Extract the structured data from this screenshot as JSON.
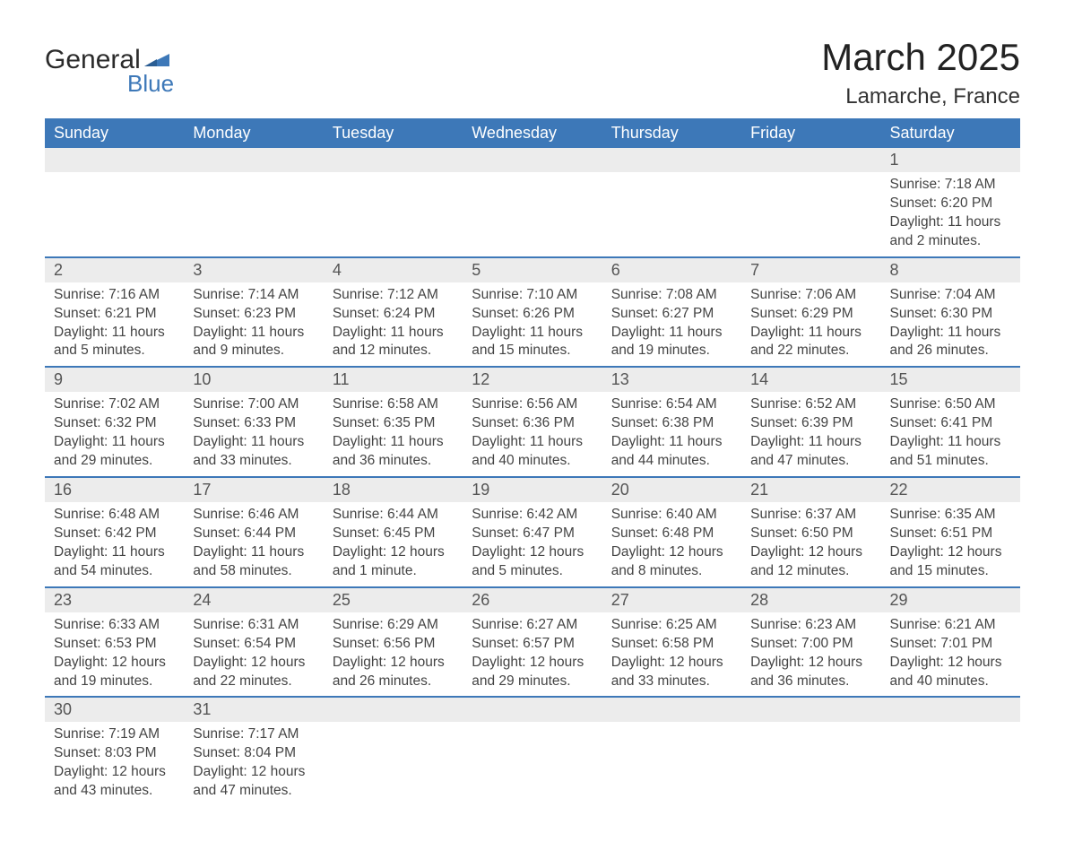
{
  "logo": {
    "text_main": "General",
    "text_sub": "Blue",
    "flag_color": "#3d78b8"
  },
  "title": "March 2025",
  "location": "Lamarche, France",
  "colors": {
    "header_bg": "#3d78b8",
    "header_text": "#ffffff",
    "daynum_bg": "#ececec",
    "row_border": "#3d78b8",
    "body_text": "#444444",
    "title_text": "#222222"
  },
  "typography": {
    "title_fontsize": 42,
    "location_fontsize": 24,
    "header_fontsize": 18,
    "daynum_fontsize": 18,
    "detail_fontsize": 15.5,
    "font_family": "Arial"
  },
  "weekdays": [
    "Sunday",
    "Monday",
    "Tuesday",
    "Wednesday",
    "Thursday",
    "Friday",
    "Saturday"
  ],
  "weeks": [
    [
      null,
      null,
      null,
      null,
      null,
      null,
      {
        "n": "1",
        "sr": "Sunrise: 7:18 AM",
        "ss": "Sunset: 6:20 PM",
        "d1": "Daylight: 11 hours",
        "d2": "and 2 minutes."
      }
    ],
    [
      {
        "n": "2",
        "sr": "Sunrise: 7:16 AM",
        "ss": "Sunset: 6:21 PM",
        "d1": "Daylight: 11 hours",
        "d2": "and 5 minutes."
      },
      {
        "n": "3",
        "sr": "Sunrise: 7:14 AM",
        "ss": "Sunset: 6:23 PM",
        "d1": "Daylight: 11 hours",
        "d2": "and 9 minutes."
      },
      {
        "n": "4",
        "sr": "Sunrise: 7:12 AM",
        "ss": "Sunset: 6:24 PM",
        "d1": "Daylight: 11 hours",
        "d2": "and 12 minutes."
      },
      {
        "n": "5",
        "sr": "Sunrise: 7:10 AM",
        "ss": "Sunset: 6:26 PM",
        "d1": "Daylight: 11 hours",
        "d2": "and 15 minutes."
      },
      {
        "n": "6",
        "sr": "Sunrise: 7:08 AM",
        "ss": "Sunset: 6:27 PM",
        "d1": "Daylight: 11 hours",
        "d2": "and 19 minutes."
      },
      {
        "n": "7",
        "sr": "Sunrise: 7:06 AM",
        "ss": "Sunset: 6:29 PM",
        "d1": "Daylight: 11 hours",
        "d2": "and 22 minutes."
      },
      {
        "n": "8",
        "sr": "Sunrise: 7:04 AM",
        "ss": "Sunset: 6:30 PM",
        "d1": "Daylight: 11 hours",
        "d2": "and 26 minutes."
      }
    ],
    [
      {
        "n": "9",
        "sr": "Sunrise: 7:02 AM",
        "ss": "Sunset: 6:32 PM",
        "d1": "Daylight: 11 hours",
        "d2": "and 29 minutes."
      },
      {
        "n": "10",
        "sr": "Sunrise: 7:00 AM",
        "ss": "Sunset: 6:33 PM",
        "d1": "Daylight: 11 hours",
        "d2": "and 33 minutes."
      },
      {
        "n": "11",
        "sr": "Sunrise: 6:58 AM",
        "ss": "Sunset: 6:35 PM",
        "d1": "Daylight: 11 hours",
        "d2": "and 36 minutes."
      },
      {
        "n": "12",
        "sr": "Sunrise: 6:56 AM",
        "ss": "Sunset: 6:36 PM",
        "d1": "Daylight: 11 hours",
        "d2": "and 40 minutes."
      },
      {
        "n": "13",
        "sr": "Sunrise: 6:54 AM",
        "ss": "Sunset: 6:38 PM",
        "d1": "Daylight: 11 hours",
        "d2": "and 44 minutes."
      },
      {
        "n": "14",
        "sr": "Sunrise: 6:52 AM",
        "ss": "Sunset: 6:39 PM",
        "d1": "Daylight: 11 hours",
        "d2": "and 47 minutes."
      },
      {
        "n": "15",
        "sr": "Sunrise: 6:50 AM",
        "ss": "Sunset: 6:41 PM",
        "d1": "Daylight: 11 hours",
        "d2": "and 51 minutes."
      }
    ],
    [
      {
        "n": "16",
        "sr": "Sunrise: 6:48 AM",
        "ss": "Sunset: 6:42 PM",
        "d1": "Daylight: 11 hours",
        "d2": "and 54 minutes."
      },
      {
        "n": "17",
        "sr": "Sunrise: 6:46 AM",
        "ss": "Sunset: 6:44 PM",
        "d1": "Daylight: 11 hours",
        "d2": "and 58 minutes."
      },
      {
        "n": "18",
        "sr": "Sunrise: 6:44 AM",
        "ss": "Sunset: 6:45 PM",
        "d1": "Daylight: 12 hours",
        "d2": "and 1 minute."
      },
      {
        "n": "19",
        "sr": "Sunrise: 6:42 AM",
        "ss": "Sunset: 6:47 PM",
        "d1": "Daylight: 12 hours",
        "d2": "and 5 minutes."
      },
      {
        "n": "20",
        "sr": "Sunrise: 6:40 AM",
        "ss": "Sunset: 6:48 PM",
        "d1": "Daylight: 12 hours",
        "d2": "and 8 minutes."
      },
      {
        "n": "21",
        "sr": "Sunrise: 6:37 AM",
        "ss": "Sunset: 6:50 PM",
        "d1": "Daylight: 12 hours",
        "d2": "and 12 minutes."
      },
      {
        "n": "22",
        "sr": "Sunrise: 6:35 AM",
        "ss": "Sunset: 6:51 PM",
        "d1": "Daylight: 12 hours",
        "d2": "and 15 minutes."
      }
    ],
    [
      {
        "n": "23",
        "sr": "Sunrise: 6:33 AM",
        "ss": "Sunset: 6:53 PM",
        "d1": "Daylight: 12 hours",
        "d2": "and 19 minutes."
      },
      {
        "n": "24",
        "sr": "Sunrise: 6:31 AM",
        "ss": "Sunset: 6:54 PM",
        "d1": "Daylight: 12 hours",
        "d2": "and 22 minutes."
      },
      {
        "n": "25",
        "sr": "Sunrise: 6:29 AM",
        "ss": "Sunset: 6:56 PM",
        "d1": "Daylight: 12 hours",
        "d2": "and 26 minutes."
      },
      {
        "n": "26",
        "sr": "Sunrise: 6:27 AM",
        "ss": "Sunset: 6:57 PM",
        "d1": "Daylight: 12 hours",
        "d2": "and 29 minutes."
      },
      {
        "n": "27",
        "sr": "Sunrise: 6:25 AM",
        "ss": "Sunset: 6:58 PM",
        "d1": "Daylight: 12 hours",
        "d2": "and 33 minutes."
      },
      {
        "n": "28",
        "sr": "Sunrise: 6:23 AM",
        "ss": "Sunset: 7:00 PM",
        "d1": "Daylight: 12 hours",
        "d2": "and 36 minutes."
      },
      {
        "n": "29",
        "sr": "Sunrise: 6:21 AM",
        "ss": "Sunset: 7:01 PM",
        "d1": "Daylight: 12 hours",
        "d2": "and 40 minutes."
      }
    ],
    [
      {
        "n": "30",
        "sr": "Sunrise: 7:19 AM",
        "ss": "Sunset: 8:03 PM",
        "d1": "Daylight: 12 hours",
        "d2": "and 43 minutes."
      },
      {
        "n": "31",
        "sr": "Sunrise: 7:17 AM",
        "ss": "Sunset: 8:04 PM",
        "d1": "Daylight: 12 hours",
        "d2": "and 47 minutes."
      },
      null,
      null,
      null,
      null,
      null
    ]
  ]
}
